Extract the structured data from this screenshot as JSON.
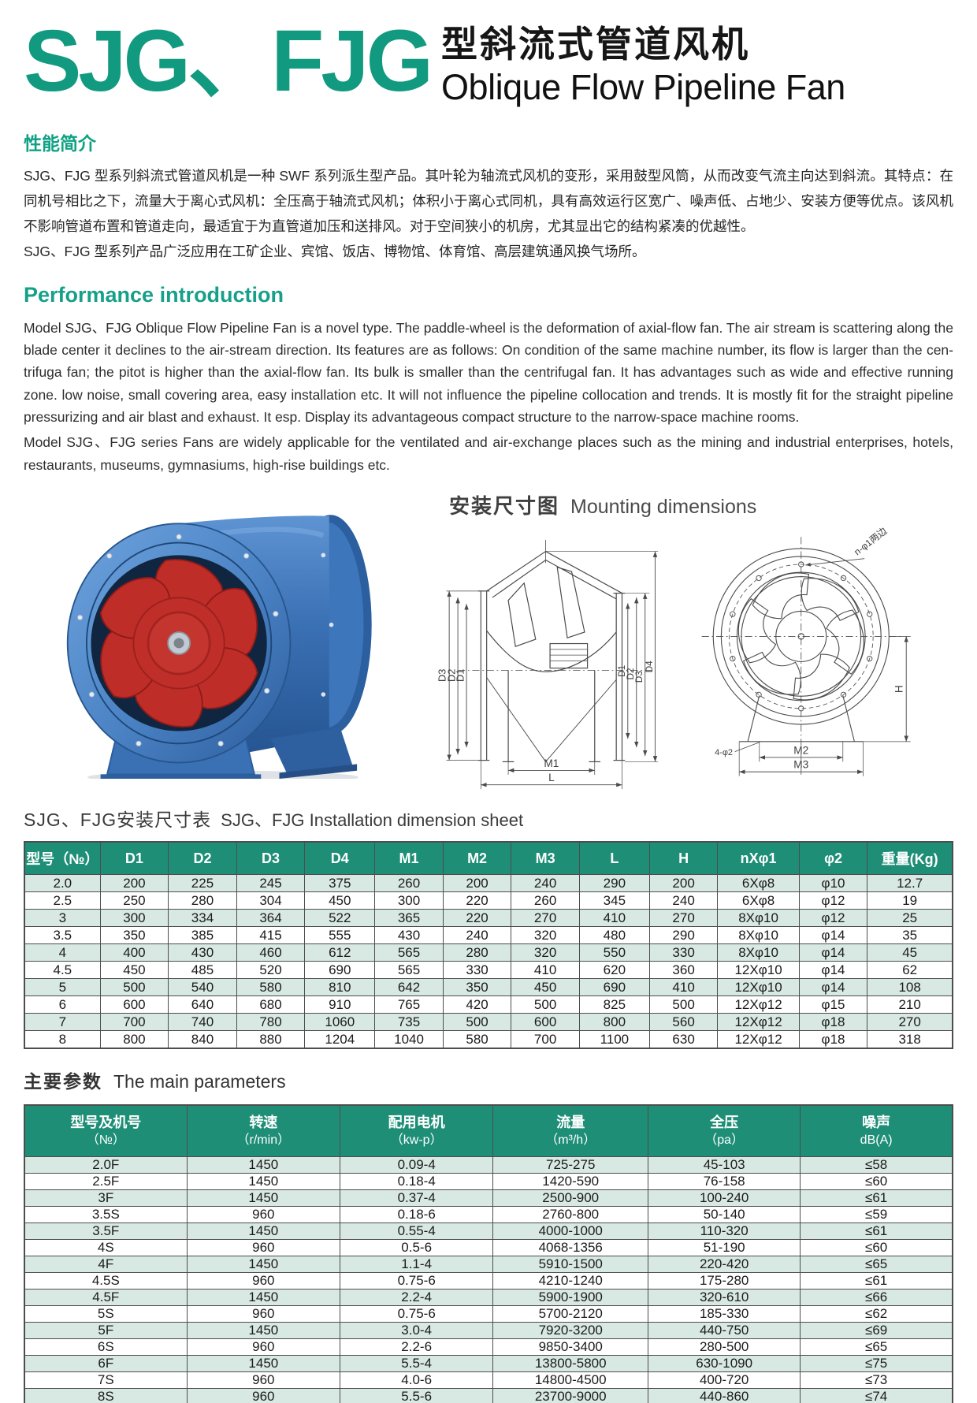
{
  "colors": {
    "accent_green": "#119a7f",
    "table_header_green": "#1e8e77",
    "row_alt_green": "#d8e8e2",
    "fan_body_blue": "#3a70b4",
    "impeller_red": "#bf2d28"
  },
  "header": {
    "logo": "SJG、FJG",
    "title_cn": "型斜流式管道风机",
    "title_en": "Oblique Flow Pipeline Fan"
  },
  "intro": {
    "heading_cn": "性能简介",
    "body_cn_1": "SJG、FJG 型系列斜流式管道风机是一种 SWF 系列派生型产品。其叶轮为轴流式风机的变形，采用鼓型风筒，从而改变气流主向达到斜流。其特点：在同机号相比之下，流量大于离心式风机：全压高于轴流式风机；体积小于离心式同机，具有高效运行区宽广、噪声低、占地少、安装方便等优点。该风机不影响管道布置和管道走向，最适宜于为直管道加压和送排风。对于空间狭小的机房，尤其显出它的结构紧凑的优越性。",
    "body_cn_2": "SJG、FJG 型系列产品广泛应用在工矿企业、宾馆、饭店、博物馆、体育馆、高层建筑通风换气场所。",
    "heading_en": "Performance introduction",
    "body_en_1": "Model SJG、FJG Oblique Flow Pipeline Fan is a novel type. The paddle-wheel is the deformation of axial-flow fan. The air stream is scattering along the blade center it declines to the air-stream direction. Its features are as follows: On condition of the same machine number, its flow is larger than the cen-trifuga fan; the pitot is higher than the axial-flow fan. Its bulk is smaller than the centrifugal fan. It has advantages such as wide and effective running zone. low noise,  small covering area, easy installation etc. It will not influence the pipeline collocation and trends. It is mostly fit for the straight pipeline pressurizing and air blast and exhaust. It esp. Display its advantageous compact structure to the narrow-space machine rooms.",
    "body_en_2": "Model SJG、FJG series Fans are widely applicable for the ventilated and air-exchange places such as the mining and industrial enterprises, hotels, restaurants, museums, gymnasiums, high-rise buildings etc."
  },
  "mounting": {
    "heading_cn": "安装尺寸图",
    "heading_en": "Mounting dimensions",
    "labels": {
      "d1": "D1",
      "d2": "D2",
      "d3": "D3",
      "d4": "D4",
      "m1": "M1",
      "m2": "M2",
      "m3": "M3",
      "l": "L",
      "h": "H",
      "n_phi": "n-φ1两边",
      "four_phi": "4-φ2"
    }
  },
  "dimension_table": {
    "title_cn": "SJG、FJG安装尺寸表",
    "title_en": "SJG、FJG Installation dimension sheet",
    "headers": [
      "型号（№）",
      "D1",
      "D2",
      "D3",
      "D4",
      "M1",
      "M2",
      "M3",
      "L",
      "H",
      "nXφ1",
      "φ2",
      "重量(Kg)"
    ],
    "rows": [
      [
        "2.0",
        "200",
        "225",
        "245",
        "375",
        "260",
        "200",
        "240",
        "290",
        "200",
        "6Xφ8",
        "φ10",
        "12.7"
      ],
      [
        "2.5",
        "250",
        "280",
        "304",
        "450",
        "300",
        "220",
        "260",
        "345",
        "240",
        "6Xφ8",
        "φ12",
        "19"
      ],
      [
        "3",
        "300",
        "334",
        "364",
        "522",
        "365",
        "220",
        "270",
        "410",
        "270",
        "8Xφ10",
        "φ12",
        "25"
      ],
      [
        "3.5",
        "350",
        "385",
        "415",
        "555",
        "430",
        "240",
        "320",
        "480",
        "290",
        "8Xφ10",
        "φ14",
        "35"
      ],
      [
        "4",
        "400",
        "430",
        "460",
        "612",
        "565",
        "280",
        "320",
        "550",
        "330",
        "8Xφ10",
        "φ14",
        "45"
      ],
      [
        "4.5",
        "450",
        "485",
        "520",
        "690",
        "565",
        "330",
        "410",
        "620",
        "360",
        "12Xφ10",
        "φ14",
        "62"
      ],
      [
        "5",
        "500",
        "540",
        "580",
        "810",
        "642",
        "350",
        "450",
        "690",
        "410",
        "12Xφ10",
        "φ14",
        "108"
      ],
      [
        "6",
        "600",
        "640",
        "680",
        "910",
        "765",
        "420",
        "500",
        "825",
        "500",
        "12Xφ12",
        "φ15",
        "210"
      ],
      [
        "7",
        "700",
        "740",
        "780",
        "1060",
        "735",
        "500",
        "600",
        "800",
        "560",
        "12Xφ12",
        "φ18",
        "270"
      ],
      [
        "8",
        "800",
        "840",
        "880",
        "1204",
        "1040",
        "580",
        "700",
        "1100",
        "630",
        "12Xφ12",
        "φ18",
        "318"
      ]
    ]
  },
  "parameters_table": {
    "title_cn": "主要参数",
    "title_en": "The main parameters",
    "headers": [
      {
        "l1": "型号及机号",
        "l2": "（№）"
      },
      {
        "l1": "转速",
        "l2": "（r/min）"
      },
      {
        "l1": "配用电机",
        "l2": "（kw-p）"
      },
      {
        "l1": "流量",
        "l2": "（m³/h）"
      },
      {
        "l1": "全压",
        "l2": "（pa）"
      },
      {
        "l1": "噪声",
        "l2": "dB(A)"
      }
    ],
    "rows": [
      [
        "2.0F",
        "1450",
        "0.09-4",
        "725-275",
        "45-103",
        "≤58"
      ],
      [
        "2.5F",
        "1450",
        "0.18-4",
        "1420-590",
        "76-158",
        "≤60"
      ],
      [
        "3F",
        "1450",
        "0.37-4",
        "2500-900",
        "100-240",
        "≤61"
      ],
      [
        "3.5S",
        "960",
        "0.18-6",
        "2760-800",
        "50-140",
        "≤59"
      ],
      [
        "3.5F",
        "1450",
        "0.55-4",
        "4000-1000",
        "110-320",
        "≤61"
      ],
      [
        "4S",
        "960",
        "0.5-6",
        "4068-1356",
        "51-190",
        "≤60"
      ],
      [
        "4F",
        "1450",
        "1.1-4",
        "5910-1500",
        "220-420",
        "≤65"
      ],
      [
        "4.5S",
        "960",
        "0.75-6",
        "4210-1240",
        "175-280",
        "≤61"
      ],
      [
        "4.5F",
        "1450",
        "2.2-4",
        "5900-1900",
        "320-610",
        "≤66"
      ],
      [
        "5S",
        "960",
        "0.75-6",
        "5700-2120",
        "185-330",
        "≤62"
      ],
      [
        "5F",
        "1450",
        "3.0-4",
        "7920-3200",
        "440-750",
        "≤69"
      ],
      [
        "6S",
        "960",
        "2.2-6",
        "9850-3400",
        "280-500",
        "≤65"
      ],
      [
        "6F",
        "1450",
        "5.5-4",
        "13800-5800",
        "630-1090",
        "≤75"
      ],
      [
        "7S",
        "960",
        "4.0-6",
        "14800-4500",
        "400-720",
        "≤73"
      ],
      [
        "8S",
        "960",
        "5.5-6",
        "23700-9000",
        "440-860",
        "≤74"
      ]
    ]
  }
}
